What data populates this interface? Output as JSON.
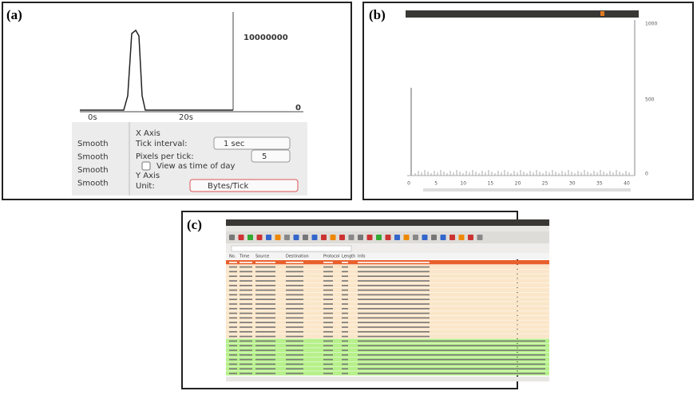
{
  "panel_a": {
    "label": "(a)",
    "y_labels": [
      "10000000",
      "0"
    ],
    "x_labels": [
      "0s",
      "20s"
    ],
    "x_axis_heading": "X Axis",
    "tick_interval_label": "Tick interval:",
    "tick_interval_value": "1 sec",
    "pixels_label": "Pixels per tick:",
    "pixels_value": "5",
    "time_of_day": "View as time of day",
    "y_axis_heading": "Y Axis",
    "unit_label": "Unit:",
    "unit_value": "Bytes/Tick",
    "smooth": [
      "Smooth",
      "Smooth",
      "Smooth",
      "Smooth"
    ]
  },
  "panel_b": {
    "label": "(b)",
    "y_labels": [
      "1000",
      "500",
      "0"
    ],
    "x_labels": [
      "0",
      "5",
      "10",
      "15",
      "20",
      "25",
      "30",
      "35",
      "40"
    ]
  },
  "panel_c": {
    "label": "(c)",
    "columns": [
      "No.",
      "Time",
      "Source",
      "Destination",
      "Protocol",
      "Length",
      "Info"
    ]
  }
}
